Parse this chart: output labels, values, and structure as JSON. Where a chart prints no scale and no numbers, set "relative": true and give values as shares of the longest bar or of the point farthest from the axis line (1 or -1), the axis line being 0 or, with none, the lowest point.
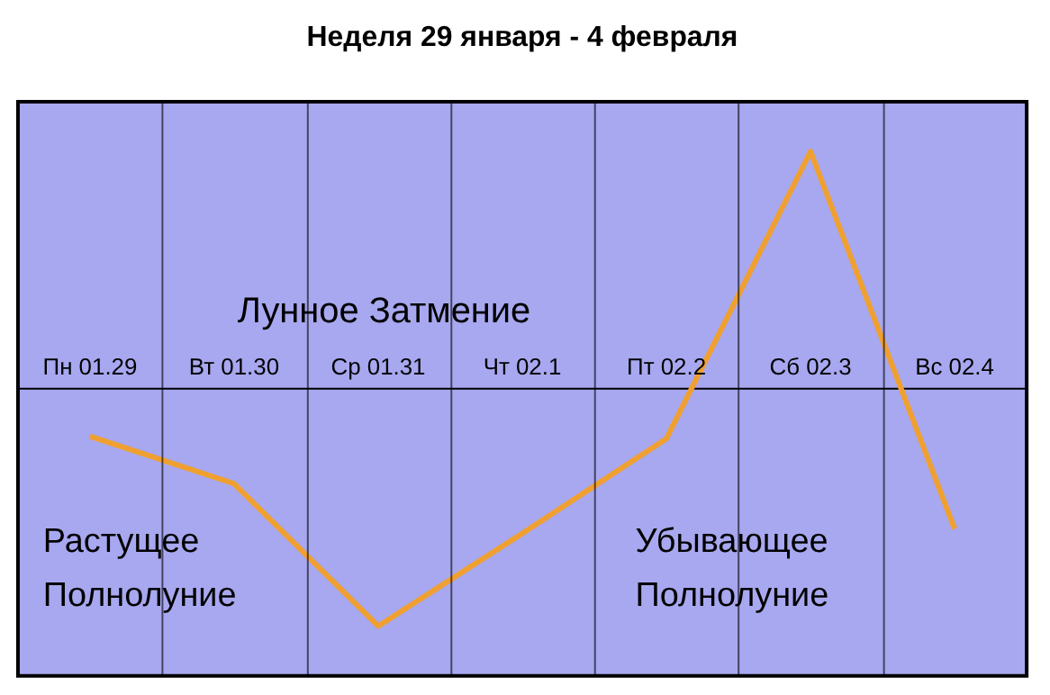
{
  "chart_data": {
    "type": "line",
    "title": "Неделя 29 января - 4 февраля",
    "categories": [
      "Пн 01.29",
      "Вт 01.30",
      "Ср 01.31",
      "Чт 02.1",
      "Пт 02.2",
      "Сб 02.3",
      "Вс 02.4"
    ],
    "values": [
      -0.2,
      -0.4,
      -1.0,
      -0.61,
      -0.21,
      1.0,
      -0.59
    ],
    "color": "#f0a030",
    "relative": true,
    "grid": "x",
    "marker": "none",
    "line_style": "solid",
    "annotations": [
      "Лунное Затмение",
      "Растущее\nПолнолуние",
      "Убывающее\nПолнолуние"
    ]
  }
}
